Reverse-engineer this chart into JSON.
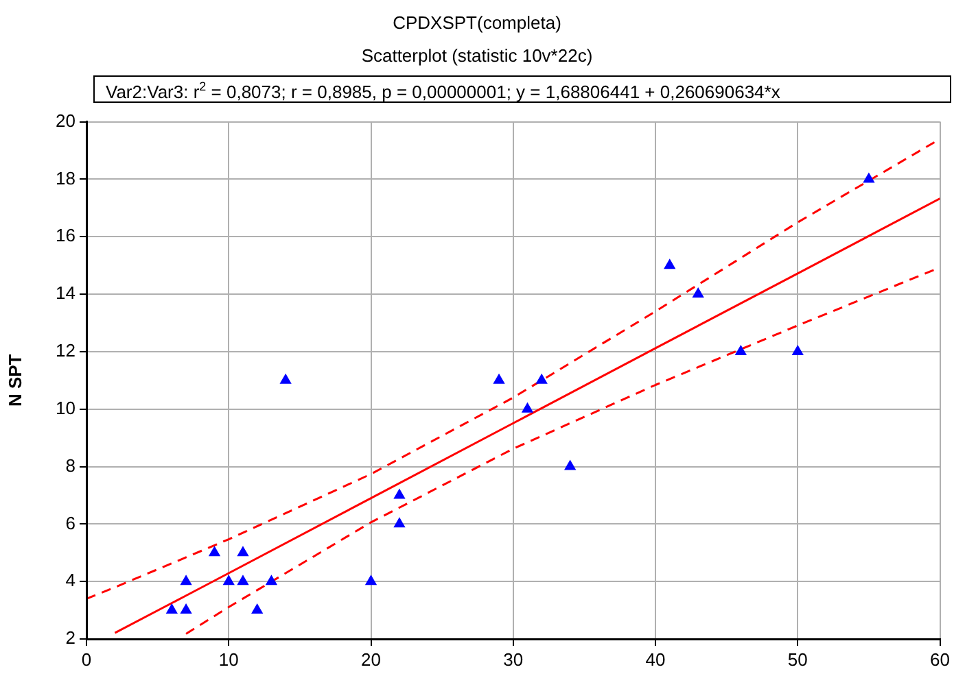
{
  "chart_data": {
    "type": "scatter",
    "title": "CPDXSPT(completa)",
    "subtitle": "Scatterplot (statistic 10v*22c)",
    "ylabel": "N SPT",
    "annotations": [
      "Var2:Var3:  r$^{2}$ = 0,8073;  r = 0,8985, p = 0,00000001;  y = 1,68806441 + 0,260690634*x"
    ],
    "series": [
      {
        "color": "#0000ff",
        "marker": "triangle",
        "x": [
          6,
          7,
          7,
          9,
          10,
          11,
          11,
          12,
          13,
          14,
          20,
          22,
          22,
          29,
          31,
          32,
          34,
          41,
          43,
          46,
          50,
          55
        ],
        "values": [
          3,
          3,
          4,
          5,
          4,
          4,
          5,
          3,
          4,
          11,
          4,
          7,
          6,
          11,
          10,
          11,
          8,
          15,
          14,
          12,
          12,
          18
        ]
      },
      {
        "type": "line",
        "color": "#ff0000",
        "line_style": "solid",
        "marker": "none",
        "x": [
          2,
          7,
          10,
          20,
          30,
          40,
          50,
          60
        ],
        "values": [
          2.21,
          3.51,
          4.29,
          6.9,
          9.51,
          12.12,
          14.72,
          17.33
        ]
      },
      {
        "type": "line",
        "color": "#ff0000",
        "line_style": "dashed",
        "marker": "none",
        "x": [
          0,
          2,
          7,
          10,
          20,
          30,
          40,
          50,
          60
        ],
        "values": [
          3.4,
          3.8,
          4.84,
          5.47,
          7.74,
          10.4,
          13.4,
          16.5,
          19.4
        ]
      },
      {
        "type": "line",
        "color": "#ff0000",
        "line_style": "dashed",
        "marker": "none",
        "x": [
          7,
          10,
          20,
          30,
          40,
          50,
          60
        ],
        "values": [
          2.18,
          3.11,
          6.06,
          8.62,
          10.84,
          12.91,
          14.93
        ]
      }
    ],
    "xlim": [
      0,
      60
    ],
    "xticks": [
      0,
      10,
      20,
      30,
      40,
      50,
      60
    ],
    "ylim": [
      2,
      20
    ],
    "yticks": [
      2,
      4,
      6,
      8,
      10,
      12,
      14,
      16,
      18,
      20
    ],
    "grid": true,
    "legend": false
  }
}
